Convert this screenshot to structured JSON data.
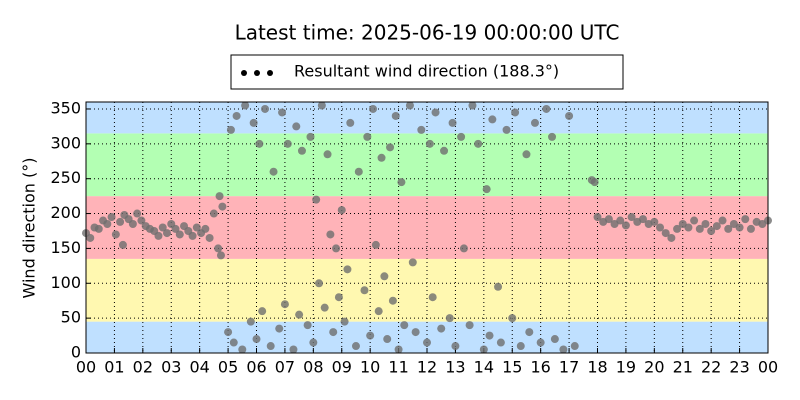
{
  "chart_data": {
    "type": "scatter",
    "title": "Latest time: 2025-06-19 00:00:00 UTC",
    "y_label": "Wind direction (°)",
    "xlim": [
      0,
      24
    ],
    "ylim": [
      0,
      360
    ],
    "xticks": [
      {
        "value": 0,
        "label": "00"
      },
      {
        "value": 1,
        "label": "01"
      },
      {
        "value": 2,
        "label": "02"
      },
      {
        "value": 3,
        "label": "03"
      },
      {
        "value": 4,
        "label": "04"
      },
      {
        "value": 5,
        "label": "05"
      },
      {
        "value": 6,
        "label": "06"
      },
      {
        "value": 7,
        "label": "07"
      },
      {
        "value": 8,
        "label": "08"
      },
      {
        "value": 9,
        "label": "09"
      },
      {
        "value": 10,
        "label": "10"
      },
      {
        "value": 11,
        "label": "11"
      },
      {
        "value": 12,
        "label": "12"
      },
      {
        "value": 13,
        "label": "13"
      },
      {
        "value": 14,
        "label": "14"
      },
      {
        "value": 15,
        "label": "15"
      },
      {
        "value": 16,
        "label": "16"
      },
      {
        "value": 17,
        "label": "17"
      },
      {
        "value": 18,
        "label": "18"
      },
      {
        "value": 19,
        "label": "19"
      },
      {
        "value": 20,
        "label": "20"
      },
      {
        "value": 21,
        "label": "21"
      },
      {
        "value": 22,
        "label": "22"
      },
      {
        "value": 23,
        "label": "23"
      },
      {
        "value": 24,
        "label": "00"
      }
    ],
    "yticks": [
      0,
      50,
      100,
      150,
      200,
      250,
      300,
      350
    ],
    "grid": true,
    "bands": [
      {
        "from": 0,
        "to": 45,
        "color": "#bfe0ff"
      },
      {
        "from": 45,
        "to": 135,
        "color": "#fff8b0"
      },
      {
        "from": 135,
        "to": 225,
        "color": "#ffb3b8"
      },
      {
        "from": 225,
        "to": 315,
        "color": "#b3ffb3"
      },
      {
        "from": 315,
        "to": 360,
        "color": "#bfe0ff"
      }
    ],
    "legend_marker_color": "#000000",
    "series": [
      {
        "name": "Resultant wind direction (188.3°)",
        "color": "#6e6e6e",
        "x": [
          0,
          0.15,
          0.3,
          0.45,
          0.6,
          0.75,
          0.9,
          1.05,
          1.2,
          1.3,
          1.35,
          1.5,
          1.65,
          1.8,
          1.95,
          2.1,
          2.25,
          2.4,
          2.55,
          2.7,
          2.85,
          3,
          3.15,
          3.3,
          3.45,
          3.6,
          3.75,
          3.9,
          4.05,
          4.2,
          4.35,
          4.5,
          4.65,
          4.7,
          4.75,
          4.8,
          5.0,
          5.1,
          5.2,
          5.3,
          5.5,
          5.6,
          5.8,
          5.9,
          6.0,
          6.1,
          6.2,
          6.3,
          6.5,
          6.6,
          6.8,
          6.9,
          7.0,
          7.1,
          7.3,
          7.4,
          7.5,
          7.6,
          7.8,
          7.9,
          8.0,
          8.1,
          8.2,
          8.3,
          8.4,
          8.5,
          8.6,
          8.7,
          8.8,
          8.9,
          9.0,
          9.1,
          9.2,
          9.3,
          9.5,
          9.6,
          9.8,
          9.9,
          10.0,
          10.1,
          10.2,
          10.3,
          10.4,
          10.5,
          10.6,
          10.7,
          10.8,
          10.9,
          11.0,
          11.1,
          11.2,
          11.4,
          11.5,
          11.6,
          11.8,
          12.0,
          12.1,
          12.2,
          12.3,
          12.5,
          12.6,
          12.8,
          12.9,
          13.0,
          13.2,
          13.3,
          13.5,
          13.6,
          13.8,
          14.0,
          14.1,
          14.2,
          14.3,
          14.5,
          14.6,
          14.8,
          15.0,
          15.1,
          15.3,
          15.5,
          15.6,
          15.8,
          16.0,
          16.2,
          16.4,
          16.5,
          16.8,
          17.0,
          17.2,
          17.8,
          17.9,
          18.0,
          18.2,
          18.4,
          18.6,
          18.8,
          19.0,
          19.2,
          19.4,
          19.6,
          19.8,
          20.0,
          20.2,
          20.4,
          20.6,
          20.8,
          21.0,
          21.2,
          21.4,
          21.6,
          21.8,
          22.0,
          22.2,
          22.4,
          22.6,
          22.8,
          23.0,
          23.2,
          23.4,
          23.6,
          23.8,
          24.0
        ],
        "values": [
          172,
          165,
          180,
          178,
          190,
          185,
          195,
          170,
          188,
          155,
          198,
          192,
          185,
          200,
          190,
          182,
          178,
          175,
          168,
          180,
          172,
          185,
          178,
          170,
          182,
          175,
          168,
          180,
          172,
          178,
          165,
          200,
          150,
          225,
          140,
          210,
          30,
          320,
          15,
          340,
          5,
          355,
          45,
          330,
          20,
          300,
          60,
          350,
          10,
          260,
          35,
          345,
          70,
          300,
          5,
          325,
          55,
          290,
          40,
          310,
          15,
          220,
          100,
          355,
          65,
          285,
          170,
          30,
          150,
          80,
          205,
          45,
          120,
          330,
          10,
          260,
          90,
          310,
          25,
          350,
          155,
          60,
          280,
          110,
          20,
          295,
          75,
          340,
          5,
          245,
          40,
          355,
          130,
          30,
          320,
          15,
          300,
          80,
          345,
          35,
          290,
          50,
          330,
          10,
          310,
          150,
          40,
          355,
          300,
          5,
          235,
          25,
          335,
          95,
          15,
          320,
          50,
          345,
          10,
          285,
          30,
          330,
          15,
          350,
          310,
          20,
          5,
          340,
          10,
          248,
          245,
          195,
          188,
          192,
          185,
          190,
          183,
          195,
          188,
          192,
          185,
          188,
          180,
          172,
          165,
          178,
          185,
          180,
          190,
          178,
          185,
          175,
          182,
          190,
          178,
          185,
          180,
          192,
          178,
          188,
          185,
          190
        ]
      }
    ]
  }
}
